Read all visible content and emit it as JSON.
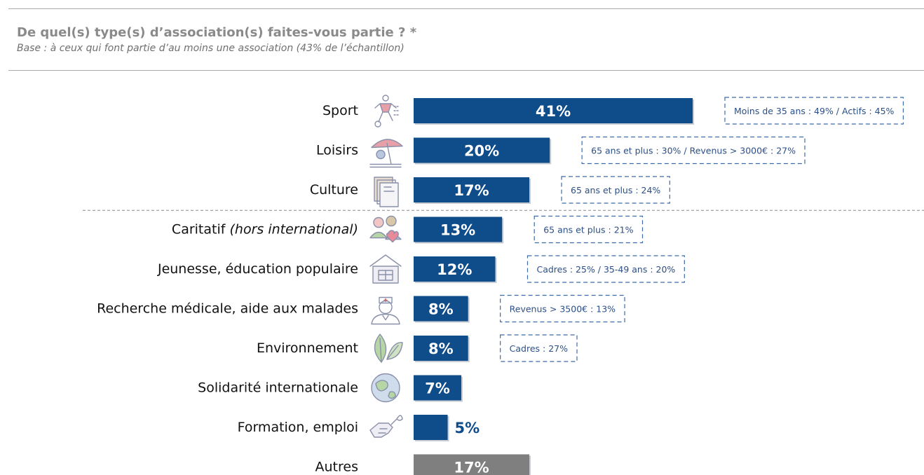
{
  "header": {
    "title": "De quel(s) type(s) d’association(s) faites-vous partie ? *",
    "subtitle": "Base : à ceux qui font partie d’au moins une association (43% de l’échantillon)"
  },
  "colors": {
    "primary": "#0f4c8a",
    "other": "#7f7f7f",
    "note": "#2b4f86",
    "icon": "#8a90aa"
  },
  "chart_data": {
    "type": "bar",
    "orientation": "horizontal",
    "categories": [
      "Sport",
      "Loisirs",
      "Culture",
      "Caritatif (hors international)",
      "Jeunesse, éducation populaire",
      "Recherche médicale, aide aux malades",
      "Environnement",
      "Solidarité internationale",
      "Formation, emploi",
      "Autres"
    ],
    "values": [
      41,
      20,
      17,
      13,
      12,
      8,
      8,
      7,
      5,
      17
    ],
    "value_labels": [
      "41%",
      "20%",
      "17%",
      "13%",
      "12%",
      "8%",
      "8%",
      "7%",
      "5%",
      "17%"
    ],
    "bar_colors": [
      "#0f4c8a",
      "#0f4c8a",
      "#0f4c8a",
      "#0f4c8a",
      "#0f4c8a",
      "#0f4c8a",
      "#0f4c8a",
      "#0f4c8a",
      "#0f4c8a",
      "#7f7f7f"
    ],
    "icons": [
      "soccer-player-icon",
      "beach-umbrella-icon",
      "books-icon",
      "people-heart-icon",
      "school-building-icon",
      "doctor-icon",
      "leaf-icon",
      "globe-icon",
      "handshake-wrench-icon",
      null
    ],
    "annotations": [
      "Moins de 35 ans : 49% / Actifs : 45%",
      "65 ans et plus : 30% / Revenus > 3000€ : 27%",
      "65 ans et plus : 24%",
      "65 ans et plus : 21%",
      "Cadres : 25% / 35-49 ans : 20%",
      "Revenus > 3500€ : 13%",
      "Cadres : 27%",
      null,
      null,
      null
    ],
    "separator_after_index": 2,
    "xlim": [
      0,
      41
    ]
  }
}
